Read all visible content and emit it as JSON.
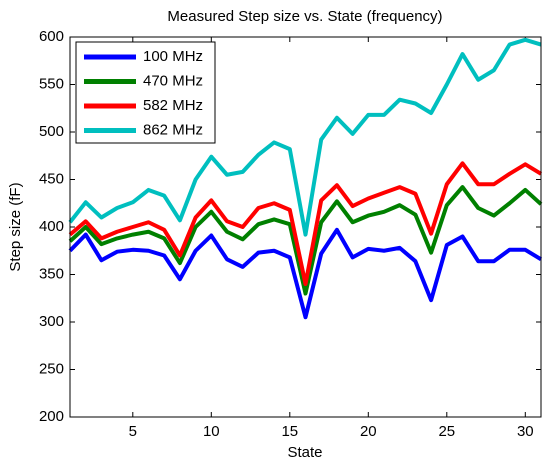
{
  "chart_data": {
    "type": "line",
    "title": "Measured Step size vs. State (frequency)",
    "xlabel": "State",
    "ylabel": "Step size (fF)",
    "x": [
      1,
      2,
      3,
      4,
      5,
      6,
      7,
      8,
      9,
      10,
      11,
      12,
      13,
      14,
      15,
      16,
      17,
      18,
      19,
      20,
      21,
      22,
      23,
      24,
      25,
      26,
      27,
      28,
      29,
      30,
      31
    ],
    "series": [
      {
        "name": "100 MHz",
        "color": "#0000ff",
        "values": [
          375,
          392,
          365,
          374,
          376,
          375,
          370,
          345,
          375,
          391,
          366,
          358,
          373,
          375,
          368,
          305,
          372,
          397,
          368,
          377,
          375,
          378,
          364,
          323,
          381,
          390,
          364,
          364,
          376,
          376,
          366
        ]
      },
      {
        "name": "470 MHz",
        "color": "#008000",
        "values": [
          385,
          400,
          382,
          388,
          392,
          395,
          388,
          362,
          400,
          416,
          395,
          387,
          403,
          408,
          403,
          330,
          405,
          427,
          405,
          412,
          416,
          423,
          413,
          373,
          423,
          442,
          420,
          412,
          425,
          439,
          424
        ]
      },
      {
        "name": "582 MHz",
        "color": "#ff0000",
        "values": [
          392,
          406,
          388,
          395,
          400,
          405,
          397,
          370,
          410,
          428,
          406,
          400,
          420,
          425,
          418,
          340,
          428,
          444,
          422,
          430,
          436,
          442,
          435,
          393,
          445,
          467,
          445,
          445,
          456,
          466,
          456
        ]
      },
      {
        "name": "862 MHz",
        "color": "#00bfbf",
        "values": [
          405,
          426,
          410,
          420,
          426,
          439,
          433,
          407,
          450,
          474,
          455,
          458,
          476,
          489,
          482,
          392,
          492,
          515,
          498,
          518,
          518,
          534,
          530,
          520,
          550,
          582,
          555,
          565,
          592,
          597,
          592
        ]
      }
    ],
    "xlim": [
      1,
      31
    ],
    "xticks": [
      5,
      10,
      15,
      20,
      25,
      30
    ],
    "ylim": [
      200,
      600
    ],
    "yticks": [
      200,
      250,
      300,
      350,
      400,
      450,
      500,
      550,
      600
    ],
    "legend": "northwest"
  }
}
